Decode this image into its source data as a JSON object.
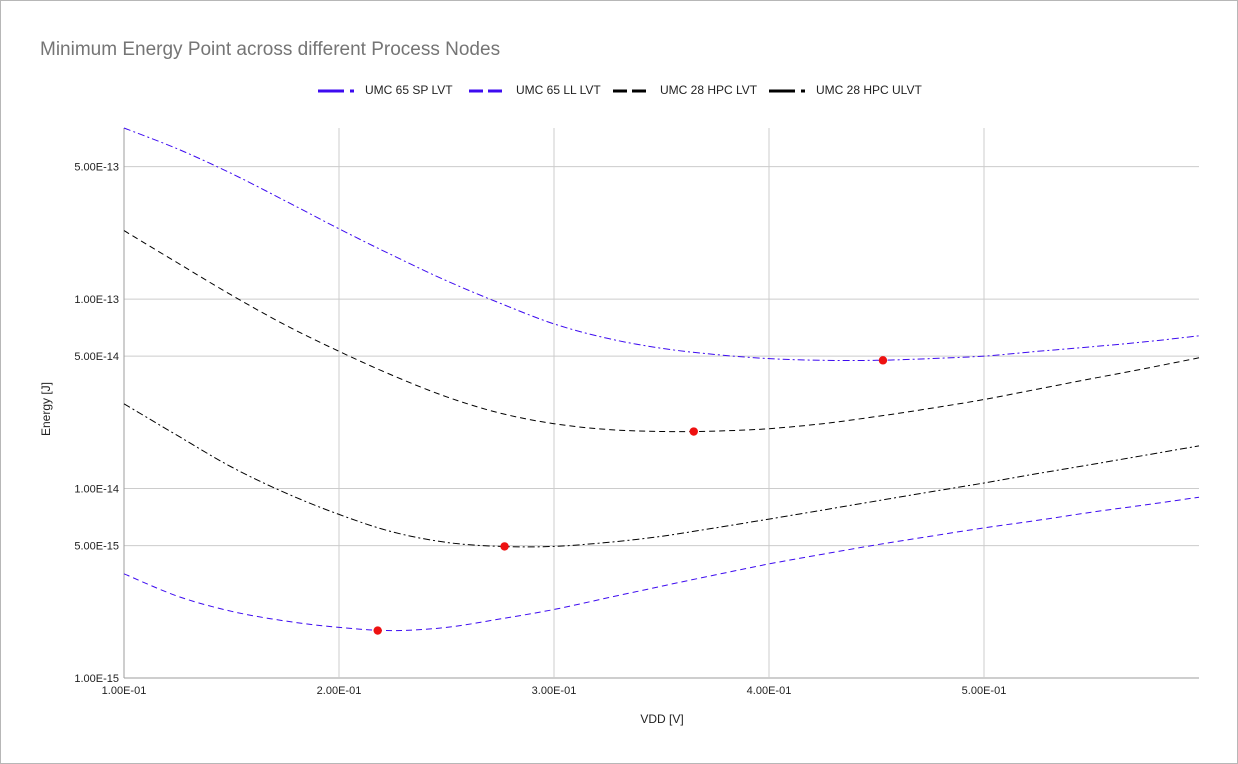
{
  "chart_data": {
    "type": "line",
    "title": "Minimum Energy Point across different Process Nodes",
    "xlabel": "VDD [V]",
    "ylabel": "Energy [J]",
    "xlim": [
      0.1,
      0.6
    ],
    "ylim": [
      1e-15,
      8e-13
    ],
    "yscale": "log",
    "grid": true,
    "legend_position": "top",
    "x_ticks": [
      {
        "value": 0.1,
        "label": "1.00E-01"
      },
      {
        "value": 0.2,
        "label": "2.00E-01"
      },
      {
        "value": 0.3,
        "label": "3.00E-01"
      },
      {
        "value": 0.4,
        "label": "4.00E-01"
      },
      {
        "value": 0.5,
        "label": "5.00E-01"
      }
    ],
    "y_ticks": [
      {
        "value": 5e-13,
        "label": "5.00E-13"
      },
      {
        "value": 1e-13,
        "label": "1.00E-13"
      },
      {
        "value": 5e-14,
        "label": "5.00E-14"
      },
      {
        "value": 1e-14,
        "label": "1.00E-14"
      },
      {
        "value": 5e-15,
        "label": "5.00E-15"
      },
      {
        "value": 1e-15,
        "label": "1.00E-15"
      }
    ],
    "series": [
      {
        "name": "UMC 65 SP LVT",
        "color": "#3d0bf0",
        "dash": "dashdot",
        "x": [
          0.1,
          0.125,
          0.15,
          0.175,
          0.2,
          0.225,
          0.25,
          0.275,
          0.3,
          0.325,
          0.35,
          0.375,
          0.4,
          0.425,
          0.45,
          0.475,
          0.5,
          0.525,
          0.55,
          0.575,
          0.6
        ],
        "y": [
          8e-13,
          6.2e-13,
          4.6e-13,
          3.3e-13,
          2.35e-13,
          1.7e-13,
          1.25e-13,
          9.5e-14,
          7.4e-14,
          6.2e-14,
          5.5e-14,
          5.1e-14,
          4.85e-14,
          4.75e-14,
          4.75e-14,
          4.85e-14,
          5e-14,
          5.3e-14,
          5.6e-14,
          5.95e-14,
          6.4e-14
        ],
        "mep": {
          "x": 0.453,
          "y": 4.75e-14
        }
      },
      {
        "name": "UMC 65 LL LVT",
        "color": "#3d0bf0",
        "dash": "dash",
        "x": [
          0.1,
          0.125,
          0.15,
          0.175,
          0.2,
          0.225,
          0.25,
          0.275,
          0.3,
          0.325,
          0.35,
          0.375,
          0.4,
          0.425,
          0.45,
          0.475,
          0.5,
          0.525,
          0.55,
          0.575,
          0.6
        ],
        "y": [
          3.55e-15,
          2.7e-15,
          2.25e-15,
          2e-15,
          1.85e-15,
          1.78e-15,
          1.85e-15,
          2.05e-15,
          2.3e-15,
          2.65e-15,
          3.05e-15,
          3.5e-15,
          4e-15,
          4.5e-15,
          5.05e-15,
          5.6e-15,
          6.2e-15,
          6.8e-15,
          7.5e-15,
          8.2e-15,
          9e-15
        ],
        "mep": {
          "x": 0.218,
          "y": 1.78e-15
        }
      },
      {
        "name": "UMC 28 HPC LVT",
        "color": "#000000",
        "dash": "dash",
        "x": [
          0.1,
          0.125,
          0.15,
          0.175,
          0.2,
          0.225,
          0.25,
          0.275,
          0.3,
          0.325,
          0.35,
          0.375,
          0.4,
          0.425,
          0.45,
          0.475,
          0.5,
          0.525,
          0.55,
          0.575,
          0.6
        ],
        "y": [
          2.3e-13,
          1.55e-13,
          1.05e-13,
          7.3e-14,
          5.3e-14,
          3.95e-14,
          3.05e-14,
          2.5e-14,
          2.2e-14,
          2.05e-14,
          2e-14,
          2.01e-14,
          2.07e-14,
          2.2e-14,
          2.4e-14,
          2.65e-14,
          2.95e-14,
          3.35e-14,
          3.8e-14,
          4.3e-14,
          4.9e-14
        ],
        "mep": {
          "x": 0.365,
          "y": 2e-14
        }
      },
      {
        "name": "UMC 28 HPC ULVT",
        "color": "#000000",
        "dash": "dashdot",
        "x": [
          0.1,
          0.125,
          0.15,
          0.175,
          0.2,
          0.225,
          0.25,
          0.275,
          0.3,
          0.325,
          0.35,
          0.375,
          0.4,
          0.425,
          0.45,
          0.475,
          0.5,
          0.525,
          0.55,
          0.575,
          0.6
        ],
        "y": [
          2.8e-14,
          1.9e-14,
          1.3e-14,
          9.5e-15,
          7.3e-15,
          5.9e-15,
          5.2e-15,
          4.95e-15,
          4.95e-15,
          5.2e-15,
          5.6e-15,
          6.2e-15,
          6.9e-15,
          7.7e-15,
          8.6e-15,
          9.6e-15,
          1.07e-14,
          1.2e-14,
          1.34e-14,
          1.5e-14,
          1.68e-14
        ],
        "mep": {
          "x": 0.277,
          "y": 4.95e-15
        }
      }
    ]
  }
}
